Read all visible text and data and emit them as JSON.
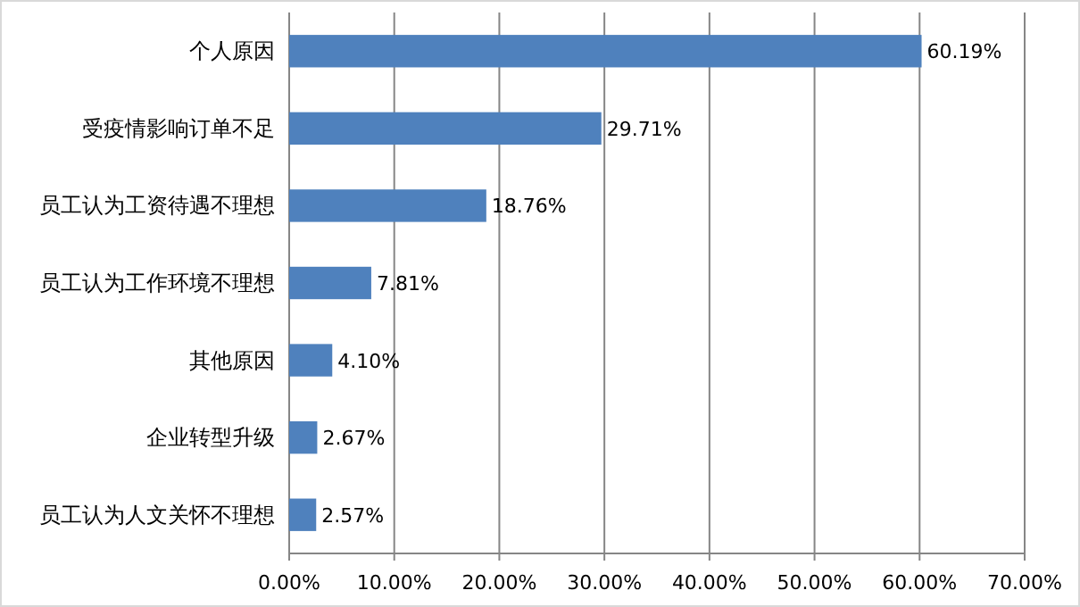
{
  "chart_data": {
    "type": "bar",
    "orientation": "horizontal",
    "categories": [
      "个人原因",
      "受疫情影响订单不足",
      "员工认为工资待遇不理想",
      "员工认为工作环境不理想",
      "其他原因",
      "企业转型升级",
      "员工认为人文关怀不理想"
    ],
    "values": [
      60.19,
      29.71,
      18.76,
      7.81,
      4.1,
      2.67,
      2.57
    ],
    "value_labels": [
      "60.19%",
      "29.71%",
      "18.76%",
      "7.81%",
      "4.10%",
      "2.67%",
      "2.57%"
    ],
    "color": "#4f81bd",
    "xlim": [
      0,
      70
    ],
    "xticks": [
      {
        "value": 0,
        "label": "0.00%"
      },
      {
        "value": 10,
        "label": "10.00%"
      },
      {
        "value": 20,
        "label": "20.00%"
      },
      {
        "value": 30,
        "label": "30.00%"
      },
      {
        "value": 40,
        "label": "40.00%"
      },
      {
        "value": 50,
        "label": "50.00%"
      },
      {
        "value": 60,
        "label": "60.00%"
      },
      {
        "value": 70,
        "label": "70.00%"
      }
    ],
    "grid": "x"
  }
}
